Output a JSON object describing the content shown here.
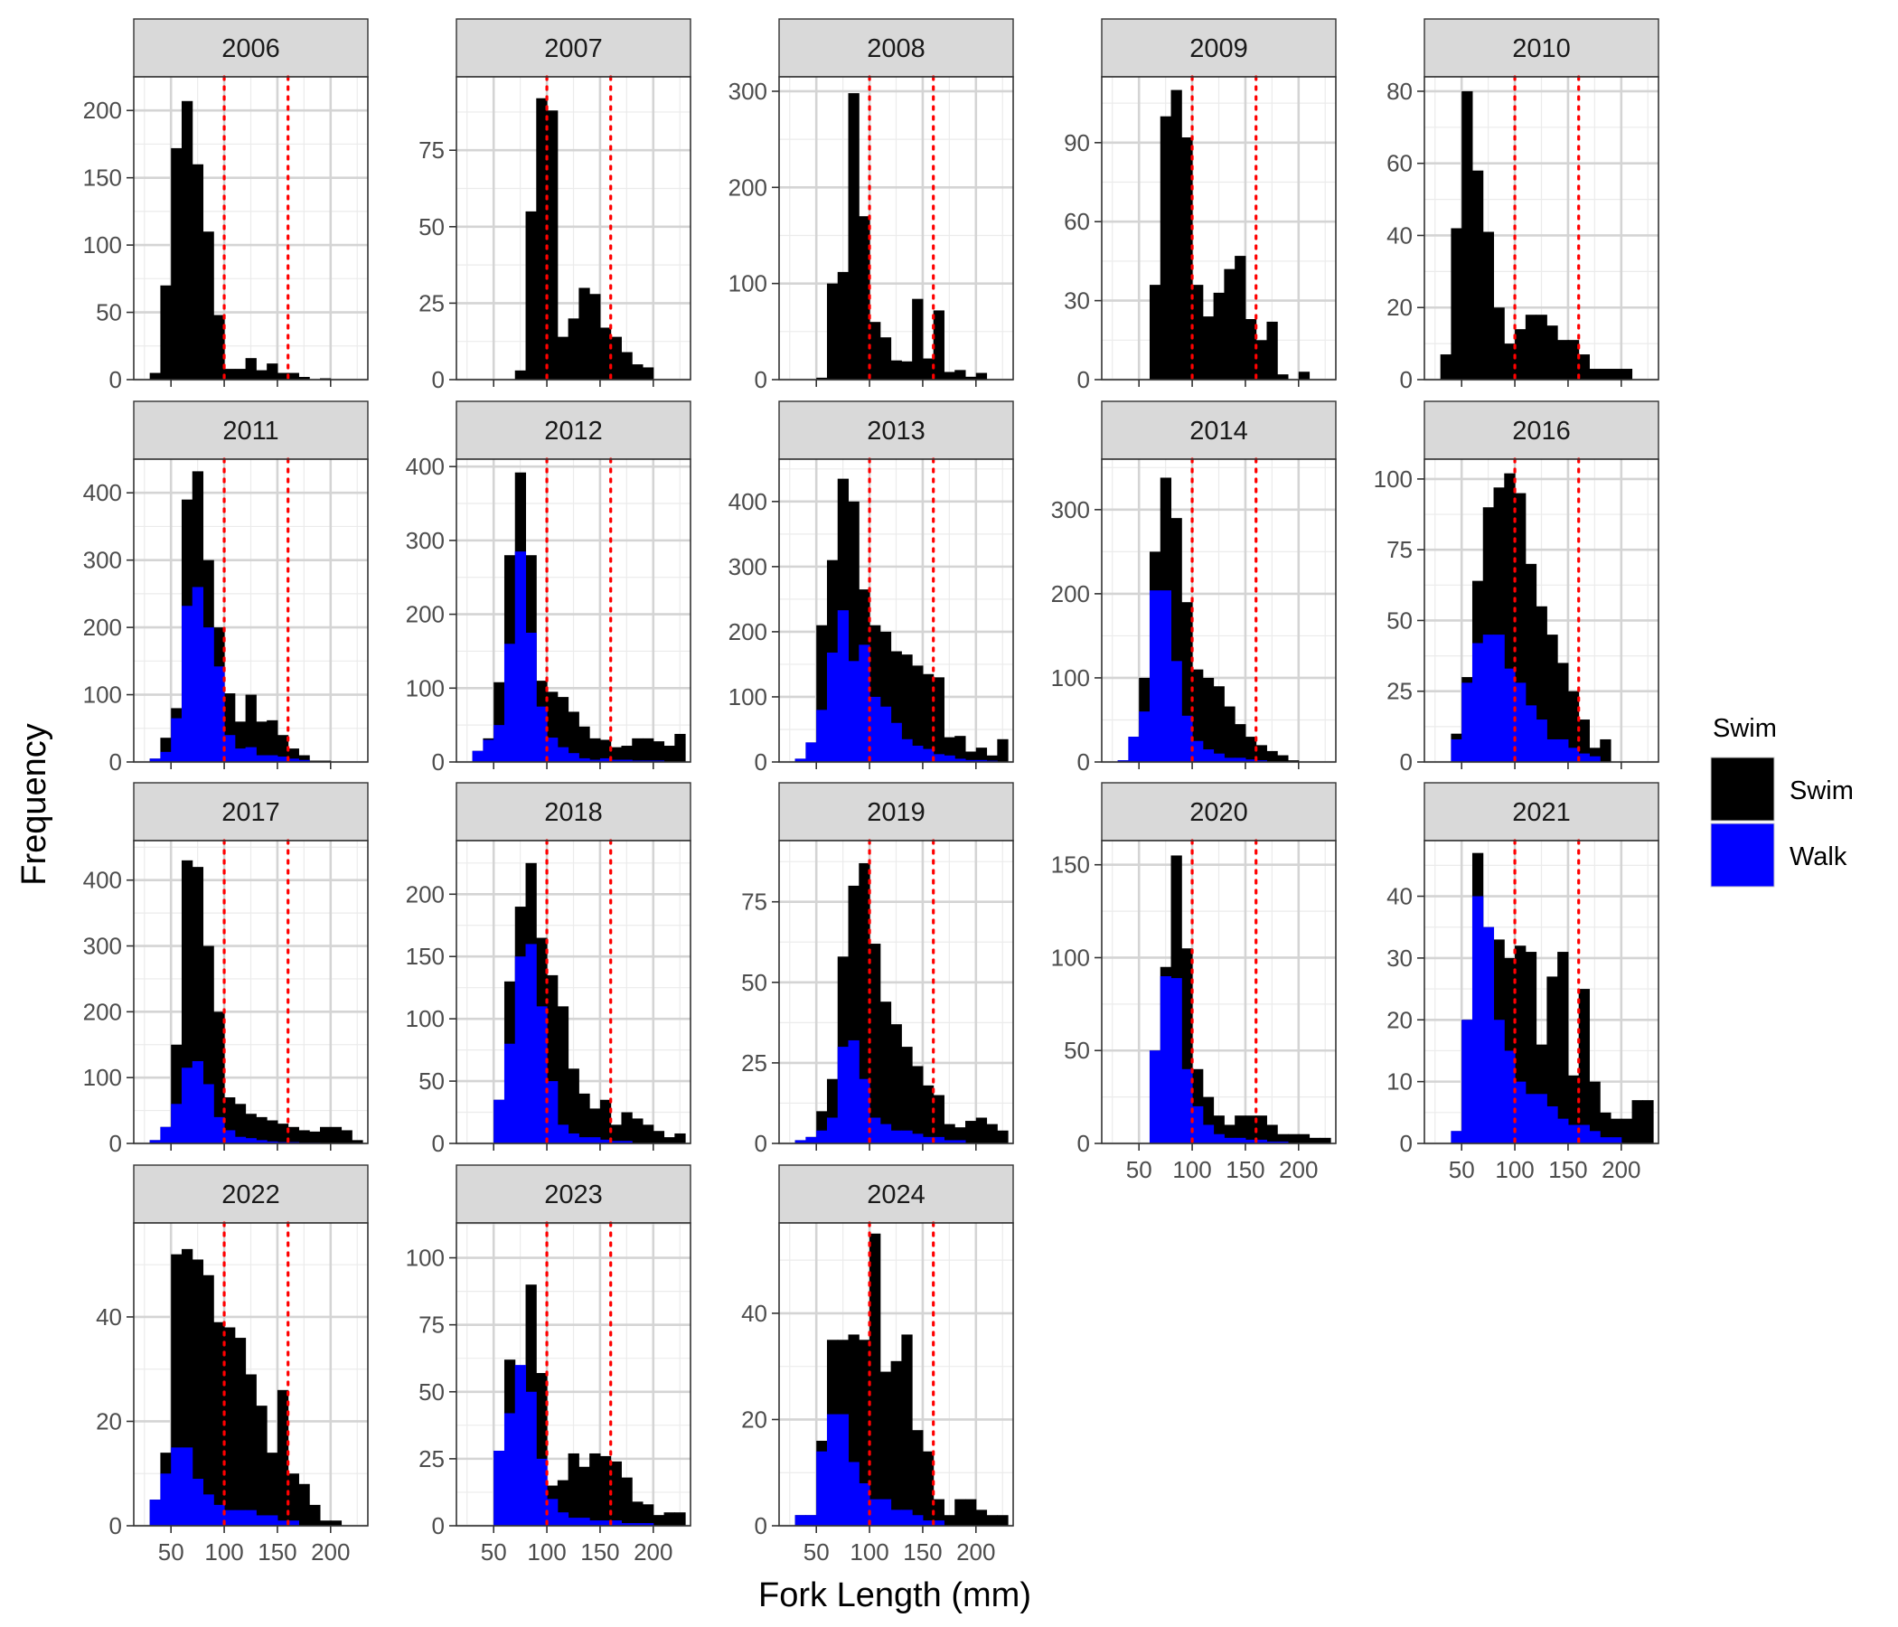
{
  "chart_data": {
    "type": "bar",
    "title": "",
    "xlabel": "Fork Length (mm)",
    "ylabel": "Frequency",
    "xlim": [
      15,
      235
    ],
    "x_breaks": [
      50,
      100,
      150,
      200
    ],
    "x_tick_labels": [
      "50",
      "100",
      "150",
      "200"
    ],
    "bin_edges": [
      30,
      40,
      50,
      60,
      70,
      80,
      90,
      100,
      110,
      120,
      130,
      140,
      150,
      160,
      170,
      180,
      190,
      200,
      210,
      220,
      230
    ],
    "reference_lines": [
      100,
      160
    ],
    "reference_line_color": "#ff0000",
    "series_names": [
      "Swim",
      "Walk"
    ],
    "series_colors": {
      "Swim": "#000000",
      "Walk": "#0000ff"
    },
    "legend": {
      "title": "Swim",
      "position": "right",
      "entries": [
        "Swim",
        "Walk"
      ]
    },
    "grid": true,
    "facets": [
      {
        "label": "2006",
        "ylim": [
          0,
          225
        ],
        "y_breaks": [
          0,
          50,
          100,
          150,
          200
        ],
        "total": [
          5,
          70,
          172,
          207,
          160,
          110,
          48,
          8,
          8,
          16,
          7,
          12,
          5,
          5,
          2,
          0,
          1,
          0,
          0,
          0
        ],
        "walk": []
      },
      {
        "label": "2007",
        "ylim": [
          0,
          99
        ],
        "y_breaks": [
          0,
          25,
          50,
          75
        ],
        "total": [
          0,
          0,
          0,
          0,
          3,
          55,
          92,
          88,
          14,
          20,
          30,
          28,
          17,
          14,
          9,
          5,
          4,
          0,
          0,
          0
        ],
        "walk": []
      },
      {
        "label": "2008",
        "ylim": [
          0,
          315
        ],
        "y_breaks": [
          0,
          100,
          200,
          300
        ],
        "total": [
          0,
          0,
          2,
          100,
          112,
          298,
          170,
          60,
          44,
          20,
          19,
          84,
          22,
          72,
          8,
          10,
          3,
          7,
          0,
          0
        ],
        "walk": []
      },
      {
        "label": "2009",
        "ylim": [
          0,
          115
        ],
        "y_breaks": [
          0,
          30,
          60,
          90
        ],
        "total": [
          0,
          0,
          0,
          36,
          100,
          110,
          92,
          36,
          24,
          33,
          42,
          47,
          23,
          15,
          22,
          2,
          0,
          3,
          0,
          0
        ],
        "walk": []
      },
      {
        "label": "2010",
        "ylim": [
          0,
          84
        ],
        "y_breaks": [
          0,
          20,
          40,
          60,
          80
        ],
        "total": [
          7,
          42,
          80,
          58,
          41,
          20,
          10,
          14,
          18,
          18,
          15,
          11,
          11,
          7,
          3,
          3,
          3,
          3,
          0,
          0
        ],
        "walk": []
      },
      {
        "label": "2011",
        "ylim": [
          0,
          450
        ],
        "y_breaks": [
          0,
          100,
          200,
          300,
          400
        ],
        "total": [
          5,
          36,
          80,
          390,
          432,
          300,
          200,
          102,
          60,
          100,
          60,
          62,
          40,
          20,
          10,
          2,
          2,
          0,
          0,
          0
        ],
        "walk": [
          5,
          15,
          65,
          232,
          260,
          200,
          142,
          40,
          20,
          22,
          10,
          10,
          8,
          5,
          3,
          0,
          0,
          0,
          0,
          0
        ]
      },
      {
        "label": "2012",
        "ylim": [
          0,
          410
        ],
        "y_breaks": [
          0,
          100,
          200,
          300,
          400
        ],
        "total": [
          15,
          32,
          108,
          280,
          392,
          280,
          110,
          95,
          88,
          68,
          48,
          32,
          30,
          20,
          22,
          32,
          32,
          28,
          22,
          38
        ],
        "walk": [
          15,
          30,
          50,
          160,
          285,
          175,
          75,
          33,
          20,
          12,
          5,
          3,
          5,
          3,
          3,
          2,
          2,
          2,
          0,
          0
        ]
      },
      {
        "label": "2013",
        "ylim": [
          0,
          465
        ],
        "y_breaks": [
          0,
          100,
          200,
          300,
          400
        ],
        "total": [
          5,
          30,
          210,
          310,
          435,
          400,
          265,
          210,
          200,
          170,
          165,
          148,
          135,
          130,
          38,
          40,
          16,
          22,
          10,
          35
        ],
        "walk": [
          5,
          30,
          80,
          168,
          233,
          155,
          180,
          100,
          85,
          60,
          35,
          25,
          20,
          12,
          10,
          5,
          3,
          3,
          2,
          0
        ]
      },
      {
        "label": "2014",
        "ylim": [
          0,
          360
        ],
        "y_breaks": [
          0,
          100,
          200,
          300
        ],
        "total": [
          2,
          30,
          100,
          250,
          338,
          290,
          190,
          110,
          100,
          90,
          66,
          45,
          30,
          20,
          13,
          8,
          2,
          0,
          0,
          0
        ],
        "walk": [
          2,
          30,
          60,
          204,
          204,
          120,
          55,
          25,
          15,
          10,
          5,
          5,
          3,
          2,
          0,
          0,
          0,
          0,
          0,
          0
        ]
      },
      {
        "label": "2016",
        "ylim": [
          0,
          107
        ],
        "y_breaks": [
          0,
          25,
          50,
          75,
          100
        ],
        "total": [
          0,
          10,
          30,
          64,
          90,
          97,
          102,
          95,
          70,
          55,
          45,
          35,
          25,
          15,
          5,
          8,
          0,
          0,
          0,
          0
        ],
        "walk": [
          0,
          8,
          28,
          42,
          45,
          45,
          33,
          28,
          20,
          15,
          8,
          8,
          5,
          3,
          2,
          0,
          0,
          0,
          0,
          0
        ]
      },
      {
        "label": "2017",
        "ylim": [
          0,
          460
        ],
        "y_breaks": [
          0,
          100,
          200,
          300,
          400
        ],
        "total": [
          5,
          25,
          150,
          430,
          420,
          300,
          200,
          70,
          60,
          45,
          40,
          35,
          30,
          25,
          20,
          18,
          25,
          25,
          20,
          5
        ],
        "walk": [
          5,
          25,
          60,
          115,
          125,
          90,
          40,
          20,
          10,
          8,
          5,
          3,
          2,
          2,
          1,
          1,
          0,
          0,
          0,
          0
        ]
      },
      {
        "label": "2018",
        "ylim": [
          0,
          243
        ],
        "y_breaks": [
          0,
          50,
          100,
          150,
          200
        ],
        "total": [
          0,
          0,
          35,
          130,
          190,
          225,
          165,
          135,
          110,
          60,
          40,
          28,
          35,
          15,
          25,
          20,
          15,
          10,
          5,
          8
        ],
        "walk": [
          0,
          0,
          35,
          80,
          150,
          160,
          110,
          50,
          15,
          8,
          5,
          5,
          3,
          2,
          2,
          0,
          0,
          0,
          0,
          0
        ]
      },
      {
        "label": "2019",
        "ylim": [
          0,
          94
        ],
        "y_breaks": [
          0,
          25,
          50,
          75
        ],
        "total": [
          1,
          2,
          10,
          20,
          58,
          80,
          87,
          62,
          44,
          37,
          30,
          24,
          18,
          15,
          6,
          5,
          7,
          8,
          6,
          4
        ],
        "walk": [
          1,
          2,
          4,
          8,
          30,
          32,
          20,
          8,
          6,
          4,
          4,
          3,
          2,
          2,
          1,
          1,
          0,
          0,
          0,
          0
        ]
      },
      {
        "label": "2020",
        "ylim": [
          0,
          163
        ],
        "y_breaks": [
          0,
          50,
          100,
          150
        ],
        "total": [
          0,
          0,
          0,
          50,
          95,
          155,
          105,
          40,
          25,
          15,
          10,
          15,
          15,
          15,
          10,
          5,
          5,
          5,
          3,
          3
        ],
        "walk": [
          0,
          0,
          0,
          50,
          90,
          89,
          40,
          20,
          10,
          5,
          3,
          3,
          2,
          2,
          1,
          1,
          0,
          0,
          0,
          0
        ]
      },
      {
        "label": "2021",
        "ylim": [
          0,
          49
        ],
        "y_breaks": [
          0,
          10,
          20,
          30,
          40
        ],
        "total": [
          0,
          2,
          20,
          47,
          35,
          33,
          30,
          32,
          31,
          16,
          27,
          31,
          11,
          25,
          10,
          5,
          4,
          4,
          7,
          7
        ],
        "walk": [
          0,
          2,
          20,
          40,
          35,
          20,
          15,
          10,
          8,
          8,
          6,
          4,
          3,
          3,
          2,
          1,
          1,
          0,
          0,
          0
        ]
      },
      {
        "label": "2022",
        "ylim": [
          0,
          58
        ],
        "y_breaks": [
          0,
          20,
          40
        ],
        "total": [
          5,
          14,
          52,
          53,
          51,
          48,
          39,
          38,
          36,
          29,
          23,
          14,
          26,
          10,
          8,
          4,
          1,
          1,
          0,
          0
        ],
        "walk": [
          5,
          10,
          15,
          15,
          9,
          6,
          4,
          3,
          3,
          3,
          2,
          2,
          1,
          1,
          0,
          0,
          0,
          0,
          0,
          0
        ]
      },
      {
        "label": "2023",
        "ylim": [
          0,
          113
        ],
        "y_breaks": [
          0,
          25,
          50,
          75,
          100
        ],
        "total": [
          0,
          0,
          28,
          62,
          55,
          90,
          57,
          15,
          17,
          27,
          22,
          27,
          26,
          24,
          18,
          9,
          8,
          4,
          5,
          5
        ],
        "walk": [
          0,
          0,
          28,
          42,
          60,
          50,
          25,
          10,
          5,
          3,
          3,
          2,
          2,
          2,
          1,
          1,
          1,
          0,
          0,
          0
        ]
      },
      {
        "label": "2024",
        "ylim": [
          0,
          57
        ],
        "y_breaks": [
          0,
          20,
          40
        ],
        "total": [
          2,
          2,
          16,
          35,
          35,
          36,
          35,
          55,
          29,
          31,
          36,
          18,
          14,
          5,
          2,
          5,
          5,
          3,
          2,
          2
        ],
        "walk": [
          2,
          2,
          14,
          21,
          21,
          12,
          8,
          5,
          5,
          3,
          3,
          2,
          1,
          1,
          0,
          0,
          0,
          0,
          0,
          0
        ]
      }
    ]
  }
}
